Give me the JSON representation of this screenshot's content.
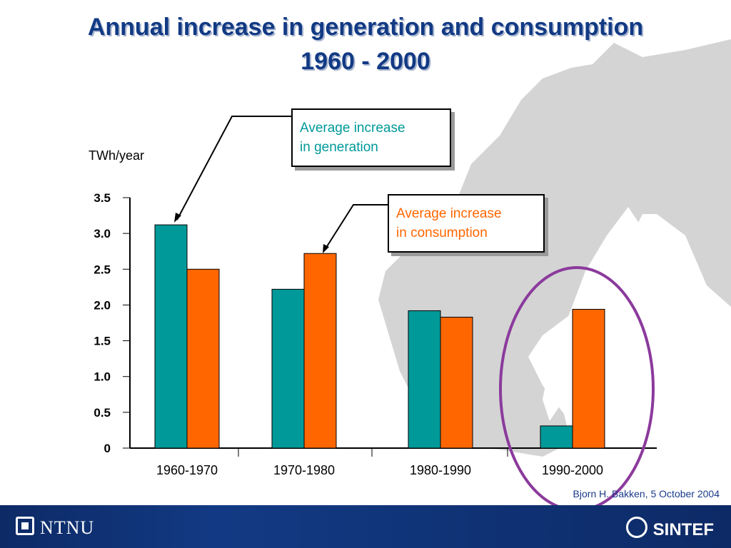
{
  "title": {
    "line1": "Annual increase in generation and consumption",
    "line2": "1960 - 2000"
  },
  "callouts": {
    "generation": [
      "Average increase",
      "in generation"
    ],
    "consumption": [
      "Average increase",
      "in consumption"
    ]
  },
  "unit_label": "TWh/year",
  "credit": "Bjorn H. Bakken, 5 October 2004",
  "footer": {
    "left_logo": "NTNU",
    "right_logo": "SINTEF"
  },
  "colors": {
    "generation": "#009999",
    "consumption": "#ff6600",
    "title": "#123a84",
    "highlight_circle": "#8b3a9c",
    "callout_generation_text": "#009999",
    "callout_consumption_text": "#ff6600"
  },
  "chart_data": {
    "type": "bar",
    "categories": [
      "1960-1970",
      "1970-1980",
      "1980-1990",
      "1990-2000"
    ],
    "series": [
      {
        "name": "Average increase in generation",
        "values": [
          3.12,
          2.22,
          1.92,
          0.31
        ]
      },
      {
        "name": "Average increase in consumption",
        "values": [
          2.5,
          2.72,
          1.83,
          1.94
        ]
      }
    ],
    "ytick_labels": [
      "0",
      "0.5",
      "1.0",
      "1.5",
      "2.0",
      "2.5",
      "3.0",
      "3.5"
    ],
    "ylim": [
      0,
      3.5
    ],
    "ylabel": "TWh/year",
    "grid": false,
    "highlight_category": "1990-2000"
  }
}
